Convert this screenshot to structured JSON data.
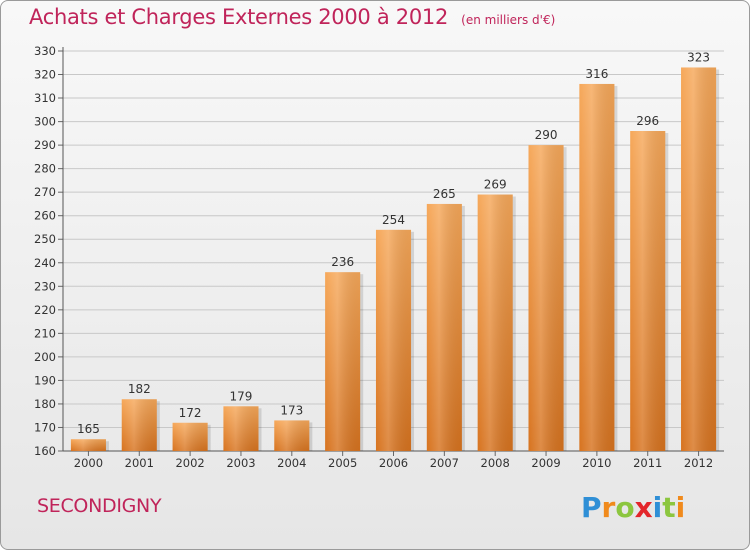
{
  "header": {
    "title": "Achats et Charges Externes 2000 à 2012",
    "unit": "(en milliers d'€)"
  },
  "footer": {
    "commune": "SECONDIGNY",
    "logo_text": "Proxiti",
    "logo_letters": [
      {
        "ch": "P",
        "color": "#2f8fd6"
      },
      {
        "ch": "r",
        "color": "#f08a1c"
      },
      {
        "ch": "o",
        "color": "#8cc63f"
      },
      {
        "ch": "x",
        "color": "#e3262b"
      },
      {
        "ch": "i",
        "color": "#2f8fd6"
      },
      {
        "ch": "t",
        "color": "#8cc63f"
      },
      {
        "ch": "i",
        "color": "#f08a1c"
      }
    ]
  },
  "colors": {
    "accent": "#c0245a",
    "bar_light": "#f6a85a",
    "bar_dark": "#d7731f",
    "grid": "#c8c8c8"
  },
  "chart_data": {
    "type": "bar",
    "title": "Achats et Charges Externes 2000 à 2012",
    "xlabel": "",
    "ylabel": "",
    "categories": [
      "2000",
      "2001",
      "2002",
      "2003",
      "2004",
      "2005",
      "2006",
      "2007",
      "2008",
      "2009",
      "2010",
      "2011",
      "2012"
    ],
    "values": [
      165,
      182,
      172,
      179,
      173,
      236,
      254,
      265,
      269,
      290,
      316,
      296,
      323
    ],
    "ylim": [
      160,
      330
    ],
    "ytick_step": 10,
    "grid": true,
    "legend": "none"
  }
}
